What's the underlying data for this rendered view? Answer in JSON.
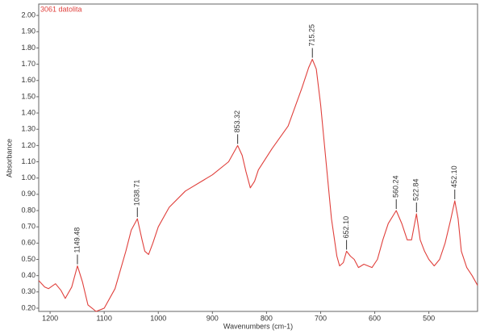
{
  "chart_data": {
    "type": "line",
    "title": "3061 datolita",
    "xlabel": "Wavenumbers (cm-1)",
    "ylabel": "Absorbance",
    "xlim": [
      1221,
      410
    ],
    "ylim": [
      0.18,
      2.07
    ],
    "xticks": [
      1200,
      1100,
      1000,
      900,
      800,
      700,
      600,
      500
    ],
    "yticks": [
      {
        "value": 0.2,
        "label": "0.20"
      },
      {
        "value": 0.3,
        "label": "0.30"
      },
      {
        "value": 0.4,
        "label": "0.40"
      },
      {
        "value": 0.5,
        "label": "0.50"
      },
      {
        "value": 0.6,
        "label": "0.60"
      },
      {
        "value": 0.7,
        "label": "0.70"
      },
      {
        "value": 0.8,
        "label": "0.80"
      },
      {
        "value": 0.9,
        "label": "0.90"
      },
      {
        "value": 1.0,
        "label": "1.00"
      },
      {
        "value": 1.1,
        "label": "1.10"
      },
      {
        "value": 1.2,
        "label": "1.20"
      },
      {
        "value": 1.3,
        "label": "1.30"
      },
      {
        "value": 1.4,
        "label": "1.40"
      },
      {
        "value": 1.5,
        "label": "1.50"
      },
      {
        "value": 1.6,
        "label": "1.60"
      },
      {
        "value": 1.7,
        "label": "1.70"
      },
      {
        "value": 1.8,
        "label": "1.80"
      },
      {
        "value": 1.9,
        "label": "1.90"
      },
      {
        "value": 2.0,
        "label": "2.00"
      }
    ],
    "series": [
      {
        "name": "3061 datolita",
        "color": "#e0403c",
        "x": [
          1221,
          1210,
          1203,
          1190,
          1180,
          1172,
          1160,
          1149.48,
          1140,
          1130,
          1115,
          1100,
          1080,
          1060,
          1050,
          1038.71,
          1030,
          1025,
          1018,
          1010,
          1000,
          980,
          950,
          900,
          870,
          853.32,
          845,
          838,
          830,
          822,
          815,
          790,
          760,
          735,
          722,
          715.25,
          708,
          700,
          690,
          680,
          670,
          665,
          658,
          652.1,
          645,
          638,
          630,
          620,
          605,
          595,
          585,
          575,
          560.24,
          550,
          540,
          532,
          522.84,
          516,
          508,
          500,
          490,
          480,
          470,
          460,
          452.1,
          446,
          440,
          430,
          420,
          410
        ],
        "values": [
          0.37,
          0.33,
          0.32,
          0.35,
          0.31,
          0.26,
          0.33,
          0.46,
          0.36,
          0.22,
          0.18,
          0.2,
          0.32,
          0.55,
          0.68,
          0.75,
          0.62,
          0.55,
          0.53,
          0.6,
          0.7,
          0.82,
          0.92,
          1.02,
          1.1,
          1.2,
          1.14,
          1.04,
          0.94,
          0.98,
          1.05,
          1.18,
          1.32,
          1.55,
          1.68,
          1.73,
          1.67,
          1.45,
          1.1,
          0.75,
          0.52,
          0.46,
          0.48,
          0.55,
          0.52,
          0.5,
          0.45,
          0.47,
          0.45,
          0.5,
          0.62,
          0.72,
          0.8,
          0.72,
          0.62,
          0.62,
          0.78,
          0.62,
          0.55,
          0.5,
          0.46,
          0.5,
          0.6,
          0.74,
          0.86,
          0.75,
          0.55,
          0.45,
          0.4,
          0.34
        ]
      }
    ],
    "peaks": [
      {
        "x": 1149.48,
        "y": 0.46,
        "label": "1149.48"
      },
      {
        "x": 1038.71,
        "y": 0.75,
        "label": "1038.71"
      },
      {
        "x": 853.32,
        "y": 1.2,
        "label": "853.32"
      },
      {
        "x": 715.25,
        "y": 1.73,
        "label": "715.25"
      },
      {
        "x": 652.1,
        "y": 0.55,
        "label": "652.10"
      },
      {
        "x": 560.24,
        "y": 0.8,
        "label": "560.24"
      },
      {
        "x": 522.84,
        "y": 0.78,
        "label": "522.84"
      },
      {
        "x": 452.1,
        "y": 0.86,
        "label": "452.10"
      }
    ]
  }
}
